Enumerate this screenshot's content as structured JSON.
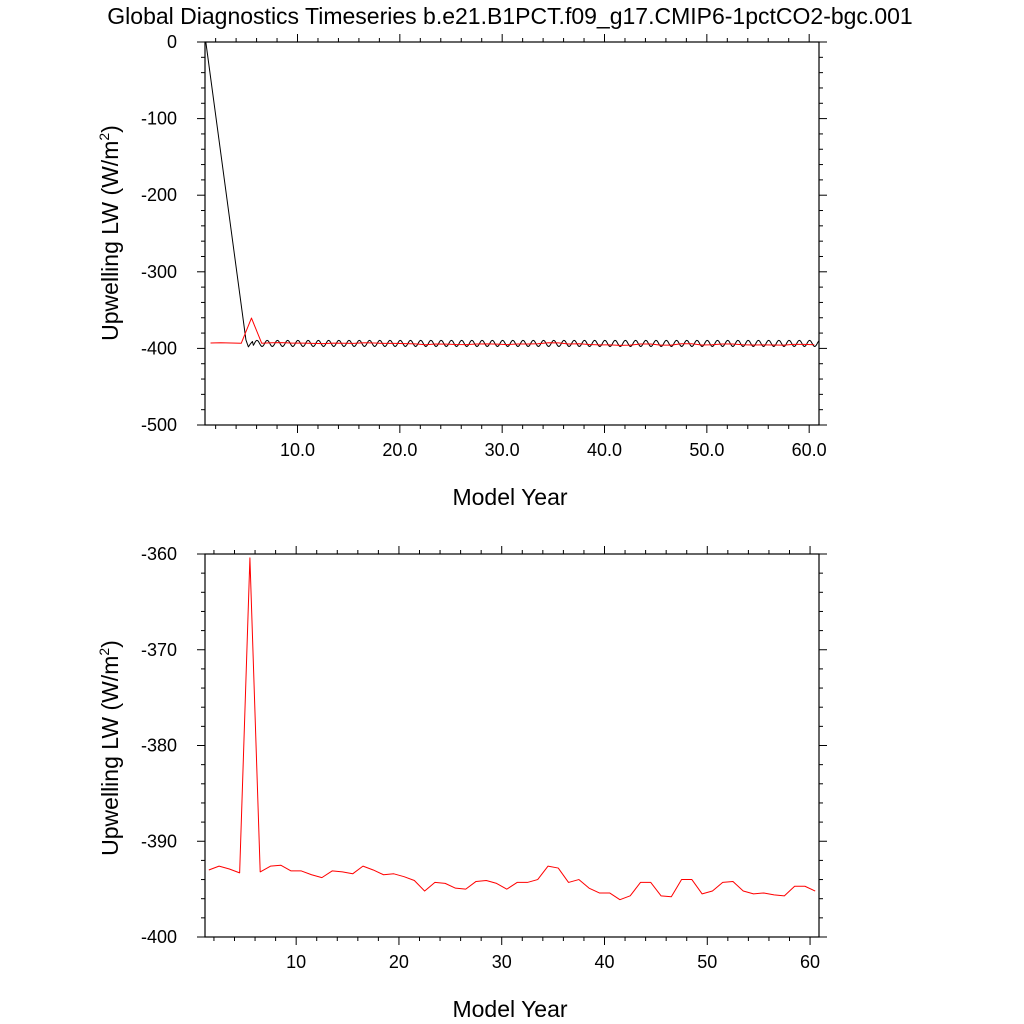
{
  "title": "Global Diagnostics Timeseries b.e21.B1PCT.f09_g17.CMIP6-1pctCO2-bgc.001",
  "colors": {
    "monthly": "#000000",
    "annual": "#ff0000"
  },
  "chart_data": [
    {
      "type": "line",
      "xlabel": "Model Year",
      "ylabel_main": "Upwelling LW (W/m",
      "ylabel_sup": "2",
      "ylabel_close": ")",
      "xlim": [
        0.96,
        60.96
      ],
      "ylim": [
        -500,
        0
      ],
      "xticks": [
        10,
        20,
        30,
        40,
        50,
        60
      ],
      "xtick_labels": [
        "10.0",
        "20.0",
        "30.0",
        "40.0",
        "50.0",
        "60.0"
      ],
      "yticks": [
        0,
        -100,
        -200,
        -300,
        -400,
        -500
      ],
      "ytick_labels": [
        "0",
        "-100",
        "-200",
        "-300",
        "-400",
        "-500"
      ],
      "series": [
        {
          "style": "monthly",
          "color": "#000000",
          "x": [
            1.04,
            4.96,
            5.2,
            5.4,
            5.6
          ],
          "y": [
            0,
            -389,
            -398,
            -394,
            -391
          ],
          "seasonal_from": 5.6,
          "seasonal_to": 60.96,
          "seasonal_mean": -393.5,
          "seasonal_amp": 4
        },
        {
          "style": "annual",
          "color": "#ff0000",
          "x": [
            1.5,
            2.5,
            3.5,
            4.5,
            5.5,
            6.5,
            7.5,
            8.5,
            9.5,
            10.5,
            11.5,
            12.5,
            13.5,
            14.5,
            15.5,
            16.5,
            17.5,
            18.5,
            19.5,
            20.5,
            21.5,
            22.5,
            23.5,
            24.5,
            25.5,
            26.5,
            27.5,
            28.5,
            29.5,
            30.5,
            31.5,
            32.5,
            33.5,
            34.5,
            35.5,
            36.5,
            37.5,
            38.5,
            39.5,
            40.5,
            41.5,
            42.5,
            43.5,
            44.5,
            45.5,
            46.5,
            47.5,
            48.5,
            49.5,
            50.5,
            51.5,
            52.5,
            53.5,
            54.5,
            55.5,
            56.5,
            57.5,
            58.5,
            59.5,
            60.5
          ],
          "y": [
            -393,
            -392.6,
            -392.9,
            -393.3,
            -360.4,
            -393.2,
            -392.6,
            -392.5,
            -393.1,
            -393.1,
            -393.5,
            -393.8,
            -393.1,
            -393.2,
            -393.4,
            -392.6,
            -393,
            -393.5,
            -393.4,
            -393.7,
            -394.1,
            -395.2,
            -394.3,
            -394.4,
            -394.9,
            -395,
            -394.2,
            -394.1,
            -394.4,
            -395,
            -394.3,
            -394.3,
            -394,
            -392.6,
            -392.8,
            -394.3,
            -394,
            -394.9,
            -395.4,
            -395.4,
            -396.1,
            -395.7,
            -394.3,
            -394.3,
            -395.7,
            -395.8,
            -394,
            -394,
            -395.5,
            -395.2,
            -394.3,
            -394.2,
            -395.2,
            -395.5,
            -395.4,
            -395.6,
            -395.7,
            -394.7,
            -394.7,
            -395.2
          ]
        }
      ]
    },
    {
      "type": "line",
      "xlabel": "Model Year",
      "ylabel_main": "Upwelling LW (W/m",
      "ylabel_sup": "2",
      "ylabel_close": ")",
      "xlim": [
        1.13,
        60.87
      ],
      "ylim": [
        -400,
        -360
      ],
      "xticks": [
        10,
        20,
        30,
        40,
        50,
        60
      ],
      "xtick_labels": [
        "10",
        "20",
        "30",
        "40",
        "50",
        "60"
      ],
      "yticks": [
        -360,
        -370,
        -380,
        -390,
        -400
      ],
      "ytick_labels": [
        "-360",
        "-370",
        "-380",
        "-390",
        "-400"
      ],
      "series": [
        {
          "style": "annual",
          "color": "#ff0000",
          "x": [
            1.5,
            2.5,
            3.5,
            4.5,
            5.5,
            6.5,
            7.5,
            8.5,
            9.5,
            10.5,
            11.5,
            12.5,
            13.5,
            14.5,
            15.5,
            16.5,
            17.5,
            18.5,
            19.5,
            20.5,
            21.5,
            22.5,
            23.5,
            24.5,
            25.5,
            26.5,
            27.5,
            28.5,
            29.5,
            30.5,
            31.5,
            32.5,
            33.5,
            34.5,
            35.5,
            36.5,
            37.5,
            38.5,
            39.5,
            40.5,
            41.5,
            42.5,
            43.5,
            44.5,
            45.5,
            46.5,
            47.5,
            48.5,
            49.5,
            50.5,
            51.5,
            52.5,
            53.5,
            54.5,
            55.5,
            56.5,
            57.5,
            58.5,
            59.5,
            60.5
          ],
          "y": [
            -393,
            -392.6,
            -392.9,
            -393.3,
            -360.4,
            -393.2,
            -392.6,
            -392.5,
            -393.1,
            -393.1,
            -393.5,
            -393.8,
            -393.1,
            -393.2,
            -393.4,
            -392.6,
            -393,
            -393.5,
            -393.4,
            -393.7,
            -394.1,
            -395.2,
            -394.3,
            -394.4,
            -394.9,
            -395,
            -394.2,
            -394.1,
            -394.4,
            -395,
            -394.3,
            -394.3,
            -394,
            -392.6,
            -392.8,
            -394.3,
            -394,
            -394.9,
            -395.4,
            -395.4,
            -396.1,
            -395.7,
            -394.3,
            -394.3,
            -395.7,
            -395.8,
            -394,
            -394,
            -395.5,
            -395.2,
            -394.3,
            -394.2,
            -395.2,
            -395.5,
            -395.4,
            -395.6,
            -395.7,
            -394.7,
            -394.7,
            -395.2
          ]
        }
      ]
    }
  ]
}
